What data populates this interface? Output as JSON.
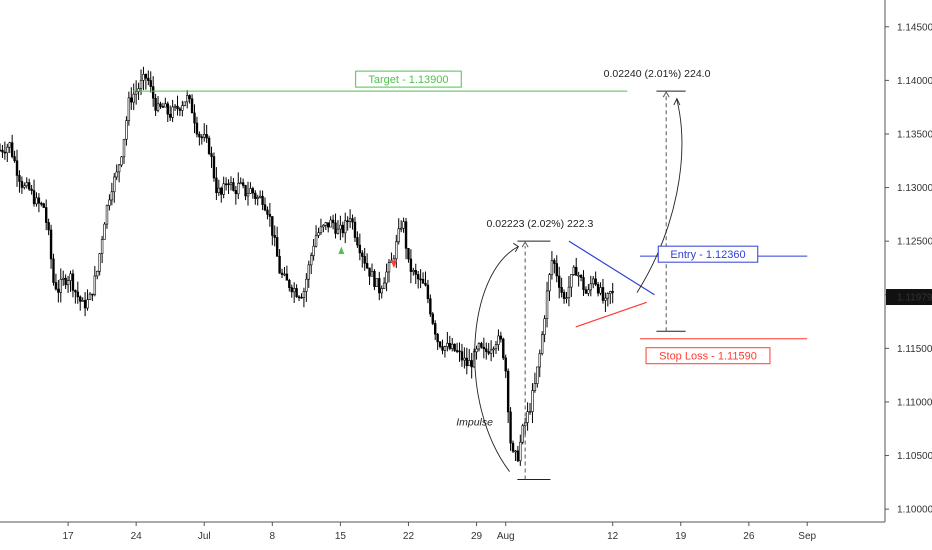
{
  "chart_data": {
    "type": "candlestick",
    "title": "",
    "colors": {
      "candle": "#000000",
      "target": "#4fc24f",
      "entry": "#2f3fd6",
      "stop": "#ff3b30",
      "measure": "#555555"
    },
    "x_ticks": [
      {
        "label": "17",
        "day": -14
      },
      {
        "label": "24",
        "day": -7
      },
      {
        "label": "Jul",
        "day": 0
      },
      {
        "label": "8",
        "day": 7
      },
      {
        "label": "15",
        "day": 14
      },
      {
        "label": "22",
        "day": 21
      },
      {
        "label": "29",
        "day": 28
      },
      {
        "label": "Aug",
        "day": 31
      },
      {
        "label": "12",
        "day": 42
      },
      {
        "label": "19",
        "day": 49
      },
      {
        "label": "26",
        "day": 56
      },
      {
        "label": "Sep",
        "day": 62
      }
    ],
    "x_range": [
      -21,
      70
    ],
    "y_range": [
      1.0988,
      1.1475
    ],
    "y_ticks": [
      {
        "label": "1.14500",
        "value": 1.145
      },
      {
        "label": "1.14000",
        "value": 1.14
      },
      {
        "label": "1.13500",
        "value": 1.135
      },
      {
        "label": "1.13000",
        "value": 1.13
      },
      {
        "label": "1.12500",
        "value": 1.125
      },
      {
        "label": "1.12000",
        "value": 1.12
      },
      {
        "label": "1.11500",
        "value": 1.115
      },
      {
        "label": "1.11000",
        "value": 1.11
      },
      {
        "label": "1.10500",
        "value": 1.105
      },
      {
        "label": "1.10000",
        "value": 1.1
      }
    ],
    "current_price": {
      "label": "1.11979",
      "value": 1.11979
    },
    "path_points": [
      [
        -21,
        1.1335
      ],
      [
        -20,
        1.134
      ],
      [
        -19.3,
        1.1318
      ],
      [
        -18.6,
        1.13
      ],
      [
        -18,
        1.1298
      ],
      [
        -17.2,
        1.1285
      ],
      [
        -16.5,
        1.1282
      ],
      [
        -16,
        1.1255
      ],
      [
        -15.5,
        1.1212
      ],
      [
        -15,
        1.1205
      ],
      [
        -14.4,
        1.1214
      ],
      [
        -13.8,
        1.1218
      ],
      [
        -13.2,
        1.1202
      ],
      [
        -12.5,
        1.119
      ],
      [
        -11.8,
        1.1195
      ],
      [
        -11,
        1.1222
      ],
      [
        -10.3,
        1.1268
      ],
      [
        -9.6,
        1.13
      ],
      [
        -9,
        1.1312
      ],
      [
        -8.4,
        1.1338
      ],
      [
        -7.7,
        1.1382
      ],
      [
        -7,
        1.139
      ],
      [
        -6.4,
        1.1398
      ],
      [
        -5.9,
        1.1404
      ],
      [
        -5.4,
        1.1388
      ],
      [
        -4.8,
        1.1372
      ],
      [
        -4.2,
        1.1375
      ],
      [
        -3.6,
        1.1368
      ],
      [
        -3,
        1.1372
      ],
      [
        -2.4,
        1.1378
      ],
      [
        -1.8,
        1.1384
      ],
      [
        -1.2,
        1.1372
      ],
      [
        -0.6,
        1.135
      ],
      [
        0,
        1.1345
      ],
      [
        0.6,
        1.1335
      ],
      [
        1.2,
        1.13
      ],
      [
        1.8,
        1.1292
      ],
      [
        2.4,
        1.131
      ],
      [
        3,
        1.1296
      ],
      [
        3.6,
        1.1302
      ],
      [
        4.2,
        1.1295
      ],
      [
        4.8,
        1.1298
      ],
      [
        5.4,
        1.129
      ],
      [
        6,
        1.129
      ],
      [
        6.6,
        1.1278
      ],
      [
        7.2,
        1.125
      ],
      [
        7.8,
        1.122
      ],
      [
        8.4,
        1.1212
      ],
      [
        9,
        1.1208
      ],
      [
        9.6,
        1.1202
      ],
      [
        10.2,
        1.1202
      ],
      [
        10.8,
        1.1228
      ],
      [
        11.4,
        1.1255
      ],
      [
        12,
        1.126
      ],
      [
        12.6,
        1.1265
      ],
      [
        13.2,
        1.1268
      ],
      [
        13.8,
        1.1258
      ],
      [
        14.4,
        1.1262
      ],
      [
        15,
        1.1275
      ],
      [
        15.6,
        1.1255
      ],
      [
        16.2,
        1.124
      ],
      [
        16.8,
        1.1225
      ],
      [
        17.4,
        1.1215
      ],
      [
        18,
        1.1205
      ],
      [
        18.6,
        1.1218
      ],
      [
        19.2,
        1.1228
      ],
      [
        19.8,
        1.1248
      ],
      [
        20.4,
        1.1272
      ],
      [
        21,
        1.1228
      ],
      [
        21.6,
        1.1218
      ],
      [
        22.2,
        1.1212
      ],
      [
        22.8,
        1.1205
      ],
      [
        23.4,
        1.118
      ],
      [
        24,
        1.1158
      ],
      [
        24.6,
        1.1152
      ],
      [
        25.2,
        1.115
      ],
      [
        25.8,
        1.1148
      ],
      [
        26.4,
        1.1142
      ],
      [
        27,
        1.1135
      ],
      [
        27.6,
        1.1138
      ],
      [
        28.2,
        1.115
      ],
      [
        28.8,
        1.1145
      ],
      [
        29.4,
        1.1152
      ],
      [
        30,
        1.1158
      ],
      [
        30.6,
        1.1155
      ],
      [
        31,
        1.113
      ],
      [
        31.6,
        1.105
      ],
      [
        32.2,
        1.1048
      ],
      [
        32.8,
        1.1075
      ],
      [
        33.4,
        1.1092
      ],
      [
        34,
        1.1115
      ],
      [
        34.6,
        1.115
      ],
      [
        35.2,
        1.1198
      ],
      [
        35.8,
        1.1235
      ],
      [
        36.4,
        1.1215
      ],
      [
        37,
        1.1195
      ],
      [
        37.6,
        1.121
      ],
      [
        38.2,
        1.1225
      ],
      [
        38.8,
        1.1212
      ],
      [
        39.4,
        1.1198
      ],
      [
        40,
        1.1218
      ],
      [
        40.6,
        1.1205
      ],
      [
        41.2,
        1.119
      ],
      [
        41.8,
        1.1202
      ],
      [
        42.2,
        1.1198
      ]
    ],
    "lines": [
      {
        "name": "target",
        "label": "Target - 1.13900",
        "value": 1.139,
        "from_day": -7.3,
        "to_day": 43.5
      },
      {
        "name": "entry",
        "label": "Entry - 1.12360",
        "value": 1.1236,
        "from_day": 44.8,
        "to_day": 62
      },
      {
        "name": "stop-loss",
        "label": "Stop Loss - 1.11590",
        "value": 1.1159,
        "from_day": 44.8,
        "to_day": 62
      }
    ],
    "triangle": {
      "upper": [
        [
          37.5,
          1.125
        ],
        [
          46.3,
          1.12
        ]
      ],
      "lower": [
        [
          38.2,
          1.117
        ],
        [
          45.5,
          1.1193
        ]
      ]
    },
    "measures": [
      {
        "name": "impulse-measure",
        "label": "0.02223 (2.02%) 222.3",
        "from_value": 1.10277,
        "to_value": 1.125,
        "day": 33,
        "from_day_range": [
          32.2,
          35.6
        ],
        "to_day_range": [
          32.2,
          35.6
        ]
      },
      {
        "name": "target-measure",
        "label": "0.02240 (2.01%) 224.0",
        "from_value": 1.1166,
        "to_value": 1.139,
        "day": 47.5,
        "from_day_range": [
          46.5,
          49.5
        ],
        "to_day_range": [
          46.5,
          49.5
        ]
      }
    ],
    "annotation": {
      "label": "Impulse"
    }
  }
}
